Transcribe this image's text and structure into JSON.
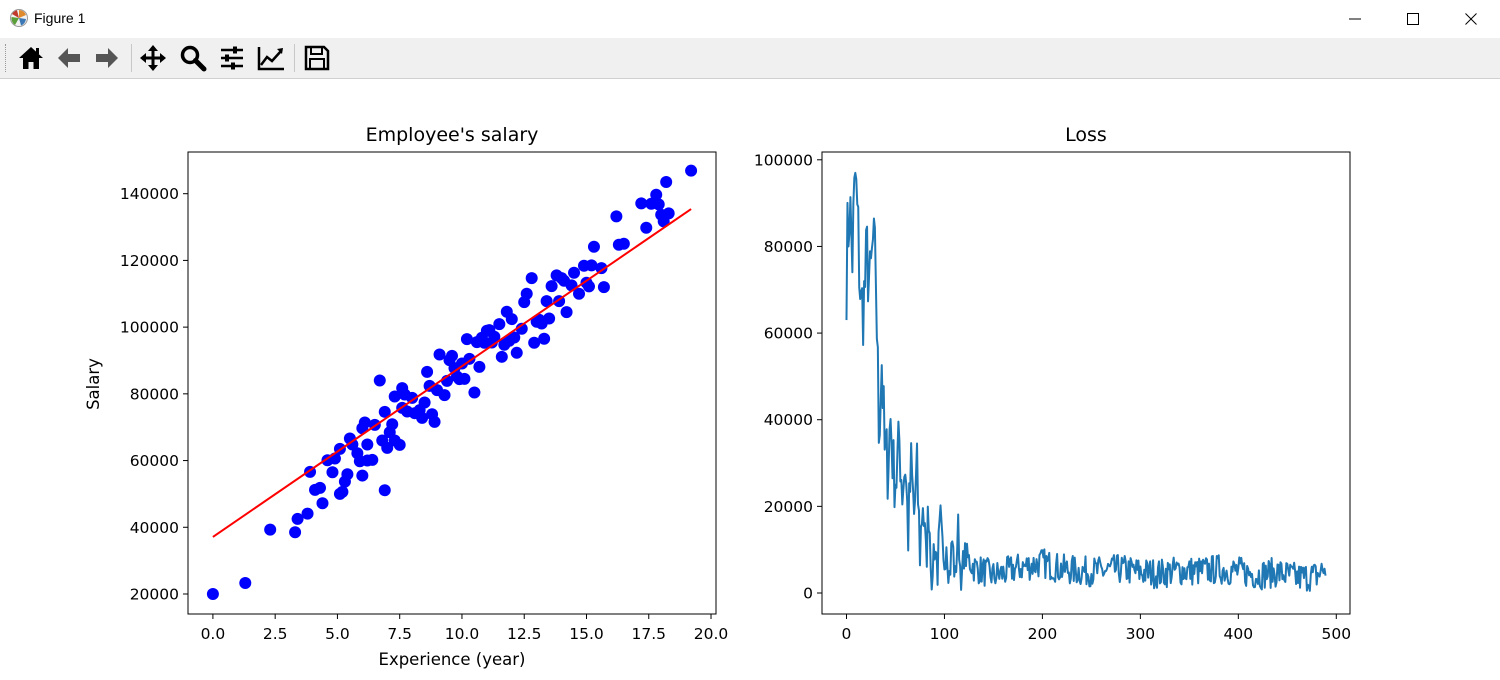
{
  "window": {
    "title": "Figure 1",
    "icons": [
      "matplotlib-icon",
      "minimize-icon",
      "maximize-icon",
      "close-icon"
    ]
  },
  "toolbar": {
    "buttons": [
      {
        "name": "home-icon"
      },
      {
        "name": "back-arrow-icon"
      },
      {
        "name": "forward-arrow-icon"
      },
      {
        "name": "pan-icon"
      },
      {
        "name": "zoom-icon"
      },
      {
        "name": "subplots-config-icon"
      },
      {
        "name": "edit-axis-icon"
      },
      {
        "name": "save-icon"
      }
    ]
  },
  "chart_data": [
    {
      "type": "scatter",
      "title": "Employee's salary",
      "xlabel": "Experience (year)",
      "ylabel": "Salary",
      "xlim": [
        -1.0,
        20.2
      ],
      "ylim": [
        14000,
        152500
      ],
      "xticks": [
        0.0,
        2.5,
        5.0,
        7.5,
        10.0,
        12.5,
        15.0,
        17.5,
        20.0
      ],
      "xtick_labels": [
        "0.0",
        "2.5",
        "5.0",
        "7.5",
        "10.0",
        "12.5",
        "15.0",
        "17.5",
        "20.0"
      ],
      "yticks": [
        20000,
        40000,
        60000,
        80000,
        100000,
        120000,
        140000
      ],
      "ytick_labels": [
        "20000",
        "40000",
        "60000",
        "80000",
        "100000",
        "120000",
        "140000"
      ],
      "grid": false,
      "colors": {
        "points": "#0000ff",
        "fit_line": "#ff0000"
      },
      "series": [
        {
          "kind": "points",
          "x": [
            0.0,
            1.3,
            2.3,
            3.3,
            3.4,
            3.8,
            3.9,
            4.1,
            4.3,
            4.4,
            4.6,
            4.8,
            4.9,
            5.1,
            5.1,
            5.2,
            5.3,
            5.4,
            5.5,
            5.6,
            5.8,
            5.9,
            6.0,
            6.0,
            6.1,
            6.2,
            6.2,
            6.4,
            6.5,
            6.7,
            6.8,
            6.9,
            6.9,
            7.0,
            7.1,
            7.2,
            7.3,
            7.3,
            7.5,
            7.6,
            7.6,
            7.7,
            7.8,
            8.0,
            8.1,
            8.3,
            8.4,
            8.5,
            8.6,
            8.7,
            8.8,
            8.9,
            9.0,
            9.1,
            9.3,
            9.4,
            9.5,
            9.6,
            9.7,
            9.8,
            9.9,
            10.0,
            10.1,
            10.2,
            10.3,
            10.5,
            10.6,
            10.7,
            10.8,
            10.9,
            11.0,
            11.1,
            11.2,
            11.3,
            11.5,
            11.6,
            11.7,
            11.8,
            11.9,
            12.0,
            12.1,
            12.2,
            12.4,
            12.5,
            12.6,
            12.8,
            12.9,
            13.0,
            13.1,
            13.2,
            13.3,
            13.4,
            13.5,
            13.6,
            13.8,
            13.9,
            14.0,
            14.1,
            14.2,
            14.4,
            14.5,
            14.7,
            14.9,
            15.0,
            15.1,
            15.2,
            15.3,
            15.6,
            15.7,
            16.2,
            16.3,
            16.5,
            17.2,
            17.4,
            17.6,
            17.8,
            17.9,
            18.0,
            18.1,
            18.2,
            18.3,
            19.2
          ],
          "y": [
            20000,
            23300,
            39300,
            38500,
            42500,
            44100,
            56600,
            51200,
            51800,
            47200,
            60100,
            56500,
            60600,
            50000,
            63500,
            50600,
            53700,
            55900,
            66600,
            64800,
            62200,
            59800,
            55500,
            69700,
            71400,
            60000,
            64800,
            60200,
            70700,
            84000,
            66000,
            74600,
            51100,
            63800,
            68500,
            70900,
            66000,
            79200,
            64700,
            75800,
            81700,
            79800,
            74700,
            78800,
            74200,
            75100,
            72800,
            77400,
            86600,
            82400,
            73900,
            71600,
            81100,
            91800,
            79600,
            83900,
            90100,
            91400,
            87700,
            85200,
            84400,
            89100,
            84500,
            96400,
            90500,
            80400,
            95500,
            88100,
            96800,
            95300,
            98900,
            99100,
            95400,
            97100,
            100900,
            91100,
            94700,
            104600,
            95900,
            102400,
            96900,
            92300,
            99500,
            107500,
            110000,
            114700,
            95300,
            101600,
            102200,
            101100,
            96500,
            107800,
            102600,
            112300,
            115500,
            107800,
            114700,
            113900,
            104500,
            112500,
            116300,
            110000,
            118400,
            113300,
            112200,
            118500,
            124100,
            117700,
            112000,
            133200,
            124700,
            125000,
            137100,
            129800,
            137000,
            139700,
            136800,
            133700,
            131700,
            143500,
            134100,
            146900
          ]
        },
        {
          "kind": "fit_line",
          "x": [
            0.0,
            19.2
          ],
          "y": [
            37100,
            135400
          ]
        }
      ]
    },
    {
      "type": "line",
      "title": "Loss",
      "xlabel": "",
      "ylabel": "",
      "xlim": [
        -25,
        514
      ],
      "ylim": [
        -4850,
        101800
      ],
      "xticks": [
        0,
        100,
        200,
        300,
        400,
        500
      ],
      "xtick_labels": [
        "0",
        "100",
        "200",
        "300",
        "400",
        "500"
      ],
      "yticks": [
        0,
        20000,
        40000,
        60000,
        80000,
        100000
      ],
      "ytick_labels": [
        "0",
        "20000",
        "40000",
        "60000",
        "80000",
        "100000"
      ],
      "grid": false,
      "colors": {
        "line": "#1f77b4"
      },
      "approx_points": 490,
      "anchor_points": {
        "x": [
          0,
          3,
          6,
          9,
          12,
          15,
          18,
          21,
          24,
          27,
          30,
          33,
          36,
          39,
          42,
          45,
          48,
          51,
          54,
          57,
          60,
          63,
          66,
          69,
          72,
          75,
          78,
          81,
          84,
          87,
          90,
          93,
          96,
          99,
          102,
          105,
          108,
          111,
          114,
          117,
          120,
          130,
          140,
          150,
          160,
          170,
          180,
          190,
          200,
          220,
          240,
          260,
          280,
          300,
          320,
          340,
          360,
          380,
          400,
          420,
          440,
          460,
          480,
          490
        ],
        "y": [
          75000,
          90000,
          78000,
          96000,
          82000,
          65000,
          68000,
          78000,
          70000,
          80000,
          74000,
          38000,
          54000,
          32000,
          30000,
          40000,
          28000,
          27000,
          35000,
          24000,
          30000,
          14000,
          29000,
          18000,
          28000,
          10000,
          22000,
          7000,
          20000,
          5000,
          12000,
          6000,
          16000,
          5000,
          13000,
          4000,
          12000,
          3000,
          15000,
          2000,
          9000,
          6000,
          5000,
          4000,
          4500,
          5500,
          6000,
          6500,
          7000,
          5500,
          5000,
          5000,
          5500,
          4800,
          4500,
          5200,
          5000,
          5500,
          5000,
          4200,
          4800,
          3500,
          4000,
          6000
        ]
      },
      "noise_band": {
        "x": [
          0,
          40,
          60,
          80,
          100,
          120,
          490
        ],
        "amplitude": [
          24000,
          19000,
          16000,
          14000,
          10000,
          7000,
          7000
        ]
      }
    }
  ]
}
